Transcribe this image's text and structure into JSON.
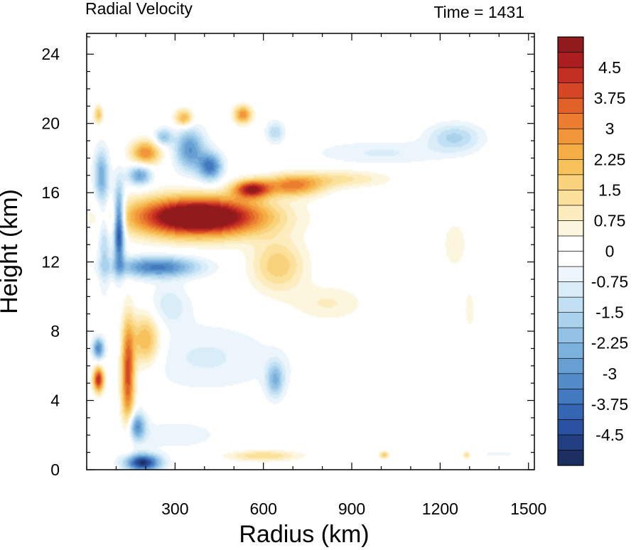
{
  "chart_data": {
    "type": "heatmap",
    "title_left": "Radial Velocity",
    "title_right": "Time = 1431",
    "xlabel": "Radius (km)",
    "ylabel": "Height (km)",
    "xlim": [
      0,
      1520
    ],
    "ylim": [
      0,
      25.2
    ],
    "xticks": [
      300,
      600,
      900,
      1200,
      1500
    ],
    "xtick_labels": [
      "300",
      "600",
      "900",
      "1200",
      "1500"
    ],
    "yticks": [
      0,
      4,
      8,
      12,
      16,
      20,
      24
    ],
    "ytick_labels": [
      "0",
      "4",
      "8",
      "12",
      "16",
      "20",
      "24"
    ],
    "colorbar": {
      "min": -5.25,
      "max": 5.25,
      "step": 0.375,
      "tick_values": [
        4.5,
        3.75,
        3,
        2.25,
        1.5,
        0.75,
        0,
        -0.75,
        -1.5,
        -2.25,
        -3,
        -3.75,
        -4.5
      ],
      "tick_labels": [
        "4.5",
        "3.75",
        "3",
        "2.25",
        "1.5",
        "0.75",
        "0",
        "-0.75",
        "-1.5",
        "-2.25",
        "-3",
        "-3.75",
        "-4.5"
      ]
    },
    "features": [
      {
        "r": 380,
        "z": 14.6,
        "sr": 220,
        "sz": 1.1,
        "v": 7.0
      },
      {
        "r": 560,
        "z": 16.2,
        "sr": 60,
        "sz": 0.5,
        "v": 4.5
      },
      {
        "r": 700,
        "z": 16.4,
        "sr": 100,
        "sz": 0.6,
        "v": 3.0
      },
      {
        "r": 860,
        "z": 16.8,
        "sr": 160,
        "sz": 0.5,
        "v": 1.2
      },
      {
        "r": 240,
        "z": 11.7,
        "sr": 140,
        "sz": 0.6,
        "v": -3.5
      },
      {
        "r": 110,
        "z": 14.0,
        "sr": 18,
        "sz": 2.2,
        "v": -5.0
      },
      {
        "r": 60,
        "z": 13.0,
        "sr": 20,
        "sz": 2.5,
        "v": -1.5
      },
      {
        "r": 650,
        "z": 11.8,
        "sr": 90,
        "sz": 1.5,
        "v": 1.8
      },
      {
        "r": 820,
        "z": 9.6,
        "sr": 120,
        "sz": 1.0,
        "v": 0.8
      },
      {
        "r": 1300,
        "z": 9.2,
        "sr": 20,
        "sz": 1.2,
        "v": 0.6
      },
      {
        "r": 1250,
        "z": 13.0,
        "sr": 60,
        "sz": 2.0,
        "v": 0.5
      },
      {
        "r": 140,
        "z": 5.5,
        "sr": 22,
        "sz": 3.0,
        "v": 4.0
      },
      {
        "r": 40,
        "z": 5.2,
        "sr": 18,
        "sz": 0.7,
        "v": 4.5
      },
      {
        "r": 40,
        "z": 7.0,
        "sr": 20,
        "sz": 0.6,
        "v": -3.2
      },
      {
        "r": 200,
        "z": 7.5,
        "sr": 50,
        "sz": 1.5,
        "v": 2.5
      },
      {
        "r": 280,
        "z": 9.5,
        "sr": 70,
        "sz": 1.2,
        "v": -1.0
      },
      {
        "r": 400,
        "z": 6.5,
        "sr": 220,
        "sz": 2.0,
        "v": -0.8
      },
      {
        "r": 640,
        "z": 5.2,
        "sr": 30,
        "sz": 1.0,
        "v": -2.2
      },
      {
        "r": 900,
        "z": 6.0,
        "sr": 300,
        "sz": 1.6,
        "v": -0.3
      },
      {
        "r": 190,
        "z": 0.4,
        "sr": 60,
        "sz": 0.5,
        "v": -5.0
      },
      {
        "r": 170,
        "z": 2.5,
        "sr": 30,
        "sz": 0.8,
        "v": -3.0
      },
      {
        "r": 300,
        "z": 2.0,
        "sr": 150,
        "sz": 0.8,
        "v": -0.7
      },
      {
        "r": 600,
        "z": 0.8,
        "sr": 120,
        "sz": 0.3,
        "v": 1.5
      },
      {
        "r": 1010,
        "z": 0.85,
        "sr": 15,
        "sz": 0.2,
        "v": 2.0
      },
      {
        "r": 1290,
        "z": 0.85,
        "sr": 12,
        "sz": 0.2,
        "v": 1.5
      },
      {
        "r": 1400,
        "z": 0.9,
        "sr": 60,
        "sz": 0.15,
        "v": -0.6
      },
      {
        "r": 200,
        "z": 18.3,
        "sr": 50,
        "sz": 0.7,
        "v": 3.0
      },
      {
        "r": 350,
        "z": 18.5,
        "sr": 50,
        "sz": 1.2,
        "v": -3.0
      },
      {
        "r": 420,
        "z": 17.5,
        "sr": 40,
        "sz": 0.8,
        "v": -3.5
      },
      {
        "r": 530,
        "z": 20.5,
        "sr": 30,
        "sz": 0.5,
        "v": 3.0
      },
      {
        "r": 330,
        "z": 20.3,
        "sr": 30,
        "sz": 0.5,
        "v": 2.5
      },
      {
        "r": 260,
        "z": 19.2,
        "sr": 30,
        "sz": 0.5,
        "v": -2.0
      },
      {
        "r": 180,
        "z": 17.0,
        "sr": 40,
        "sz": 0.6,
        "v": -2.8
      },
      {
        "r": 50,
        "z": 17.0,
        "sr": 25,
        "sz": 1.5,
        "v": -2.5
      },
      {
        "r": 40,
        "z": 20.5,
        "sr": 15,
        "sz": 0.5,
        "v": 2.0
      },
      {
        "r": 640,
        "z": 19.5,
        "sr": 30,
        "sz": 0.6,
        "v": -1.5
      },
      {
        "r": 1000,
        "z": 18.3,
        "sr": 230,
        "sz": 0.7,
        "v": -0.8
      },
      {
        "r": 1250,
        "z": 19.2,
        "sr": 90,
        "sz": 0.8,
        "v": -1.6
      }
    ]
  }
}
